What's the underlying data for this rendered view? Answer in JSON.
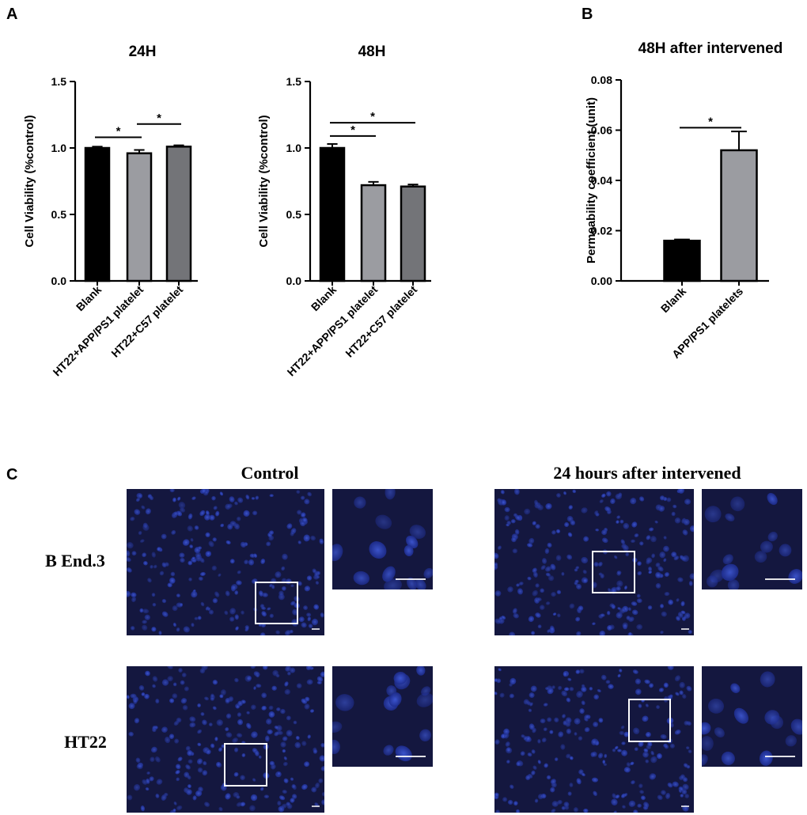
{
  "panels": {
    "a": "A",
    "b": "B",
    "c": "C"
  },
  "chart_data": [
    {
      "type": "bar",
      "title": "24H",
      "ylabel": "Cell Viability (%control)",
      "xlabel": "",
      "ylim": [
        0,
        1.5
      ],
      "yticks": [
        "0.0",
        "0.5",
        "1.0",
        "1.5"
      ],
      "categories": [
        "Blank",
        "HT22+APP/PS1 platelet",
        "HT22+C57 platelet"
      ],
      "values": [
        1.0,
        0.96,
        1.01
      ],
      "errors": [
        0.01,
        0.025,
        0.01
      ],
      "colors": [
        "#000000",
        "#9b9ca1",
        "#737478"
      ],
      "significance": [
        {
          "from": 0,
          "to": 1,
          "y": 1.08,
          "label": "*"
        },
        {
          "from": 1,
          "to": 2,
          "y": 1.18,
          "label": "*"
        }
      ]
    },
    {
      "type": "bar",
      "title": "48H",
      "ylabel": "Cell Viability (%control)",
      "xlabel": "",
      "ylim": [
        0,
        1.5
      ],
      "yticks": [
        "0.0",
        "0.5",
        "1.0",
        "1.5"
      ],
      "categories": [
        "Blank",
        "HT22+APP/PS1 platelet",
        "HT22+C57 platelet"
      ],
      "values": [
        1.0,
        0.72,
        0.71
      ],
      "errors": [
        0.03,
        0.025,
        0.015
      ],
      "colors": [
        "#000000",
        "#9b9ca1",
        "#737478"
      ],
      "significance": [
        {
          "from": 0,
          "to": 1,
          "y": 1.09,
          "label": "*"
        },
        {
          "from": 0,
          "to": 2,
          "y": 1.19,
          "label": "*"
        }
      ]
    },
    {
      "type": "bar",
      "title": "48H after intervened",
      "ylabel": "Permeability coefficient (unit)",
      "xlabel": "",
      "ylim": [
        0,
        0.08
      ],
      "yticks": [
        "0.00",
        "0.02",
        "0.04",
        "0.06",
        "0.08"
      ],
      "categories": [
        "Blank",
        "APP/PS1 platelets"
      ],
      "values": [
        0.016,
        0.052
      ],
      "errors": [
        0.0005,
        0.0075
      ],
      "colors": [
        "#000000",
        "#9b9ca1"
      ],
      "significance": [
        {
          "from": 0,
          "to": 1,
          "y": 0.061,
          "label": "*"
        }
      ]
    }
  ],
  "micrographs": {
    "column_titles": [
      "Control",
      "24 hours after intervened"
    ],
    "row_labels": [
      "B End.3",
      "HT22"
    ],
    "stain_color": "#1a2a8a",
    "background_color": "#14173f"
  }
}
